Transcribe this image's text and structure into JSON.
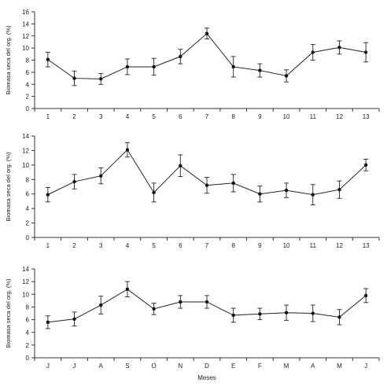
{
  "chart_data": [
    {
      "type": "line",
      "title": "",
      "xlabel": "",
      "ylabel": "Biomasa seca del org. (%)",
      "ylim": [
        0,
        16
      ],
      "yticks": [
        0,
        2,
        4,
        6,
        8,
        10,
        12,
        14,
        16
      ],
      "categories": [
        "1",
        "2",
        "3",
        "4",
        "5",
        "6",
        "7",
        "8",
        "9",
        "10",
        "11",
        "12",
        "13"
      ],
      "series": [
        {
          "values": [
            8.1,
            5.0,
            4.9,
            6.9,
            6.9,
            8.6,
            12.4,
            6.9,
            6.3,
            5.4,
            9.3,
            10.1,
            9.3
          ],
          "error": [
            1.2,
            1.2,
            0.9,
            1.3,
            1.4,
            1.2,
            0.9,
            1.7,
            1.1,
            1.0,
            1.3,
            1.1,
            1.6
          ]
        }
      ]
    },
    {
      "type": "line",
      "title": "",
      "xlabel": "",
      "ylabel": "Biomasa seca del org. (%)",
      "ylim": [
        0,
        14
      ],
      "yticks": [
        0,
        2,
        4,
        6,
        8,
        10,
        12,
        14
      ],
      "categories": [
        "1",
        "2",
        "3",
        "4",
        "5",
        "6",
        "7",
        "8",
        "9",
        "10",
        "11",
        "12",
        "13"
      ],
      "series": [
        {
          "values": [
            5.9,
            7.7,
            8.5,
            12.1,
            6.2,
            9.9,
            7.2,
            7.5,
            6.0,
            6.5,
            5.9,
            6.6,
            10.0
          ],
          "error": [
            1.0,
            1.0,
            1.1,
            1.0,
            1.3,
            1.5,
            1.1,
            1.2,
            1.1,
            1.0,
            1.4,
            1.2,
            0.8
          ]
        }
      ]
    },
    {
      "type": "line",
      "title": "",
      "xlabel": "Meses",
      "ylabel": "Biomasa seca del org. (%)",
      "ylim": [
        0,
        14
      ],
      "yticks": [
        0,
        2,
        4,
        6,
        8,
        10,
        12,
        14
      ],
      "categories": [
        "J",
        "J",
        "A",
        "S",
        "O",
        "N",
        "D",
        "E",
        "F",
        "M",
        "A",
        "M",
        "J"
      ],
      "series": [
        {
          "values": [
            5.6,
            6.1,
            8.3,
            10.8,
            7.7,
            8.8,
            8.8,
            6.7,
            6.9,
            7.1,
            7.0,
            6.4,
            9.8
          ],
          "error": [
            1.0,
            1.1,
            1.4,
            1.2,
            0.9,
            1.0,
            1.0,
            1.1,
            0.9,
            1.2,
            1.3,
            1.2,
            1.1
          ]
        }
      ]
    }
  ]
}
